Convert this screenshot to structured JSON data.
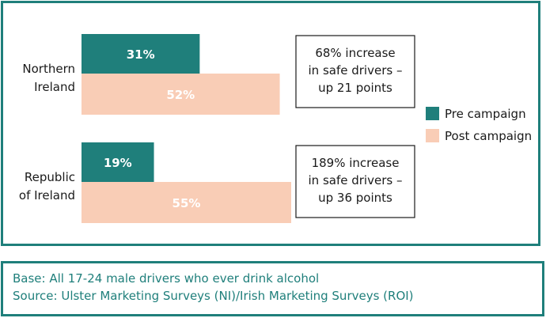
{
  "chart_data": {
    "type": "bar",
    "orientation": "horizontal",
    "categories": [
      [
        "Northern",
        "Ireland"
      ],
      [
        "Republic",
        "of Ireland"
      ]
    ],
    "series": [
      {
        "name": "Pre campaign",
        "values": [
          31,
          19
        ],
        "color": "#1f7f7b",
        "label_color": "#ffffff"
      },
      {
        "name": "Post campaign",
        "values": [
          52,
          55
        ],
        "color": "#f9cdb6",
        "label_color": "#ffffff"
      }
    ],
    "value_suffix": "%",
    "xlim": [
      0,
      55
    ],
    "legend_position": "right",
    "annotations": [
      [
        "68% increase",
        "in safe drivers –",
        "up 21 points"
      ],
      [
        "189% increase",
        "in safe drivers –",
        "up 36 points"
      ]
    ]
  },
  "source": {
    "base": "Base: All 17-24 male drivers who ever drink alcohol",
    "source": "Source: Ulster Marketing Surveys (NI)/Irish Marketing Surveys (ROI)"
  }
}
